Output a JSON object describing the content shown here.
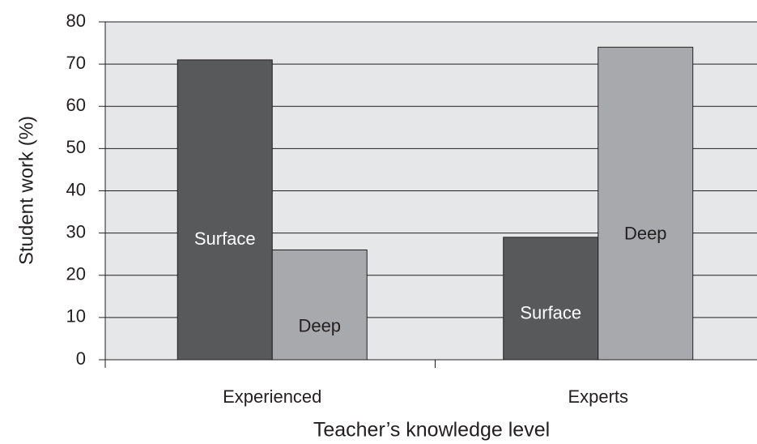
{
  "chart_data": {
    "type": "bar",
    "categories": [
      "Experienced",
      "Experts"
    ],
    "series": [
      {
        "name": "Surface",
        "color": "#58595b",
        "label_color": "#ffffff",
        "values": [
          71,
          29
        ]
      },
      {
        "name": "Deep",
        "color": "#a7a9ac",
        "label_color": "#231f20",
        "values": [
          26,
          74
        ]
      }
    ],
    "ylabel": "Student work (%)",
    "xlabel": "Teacher’s knowledge level",
    "ylim": [
      0,
      80
    ],
    "yticks": [
      0,
      10,
      20,
      30,
      40,
      50,
      60,
      70,
      80
    ],
    "grid": true,
    "background": "#e6e7e8"
  }
}
